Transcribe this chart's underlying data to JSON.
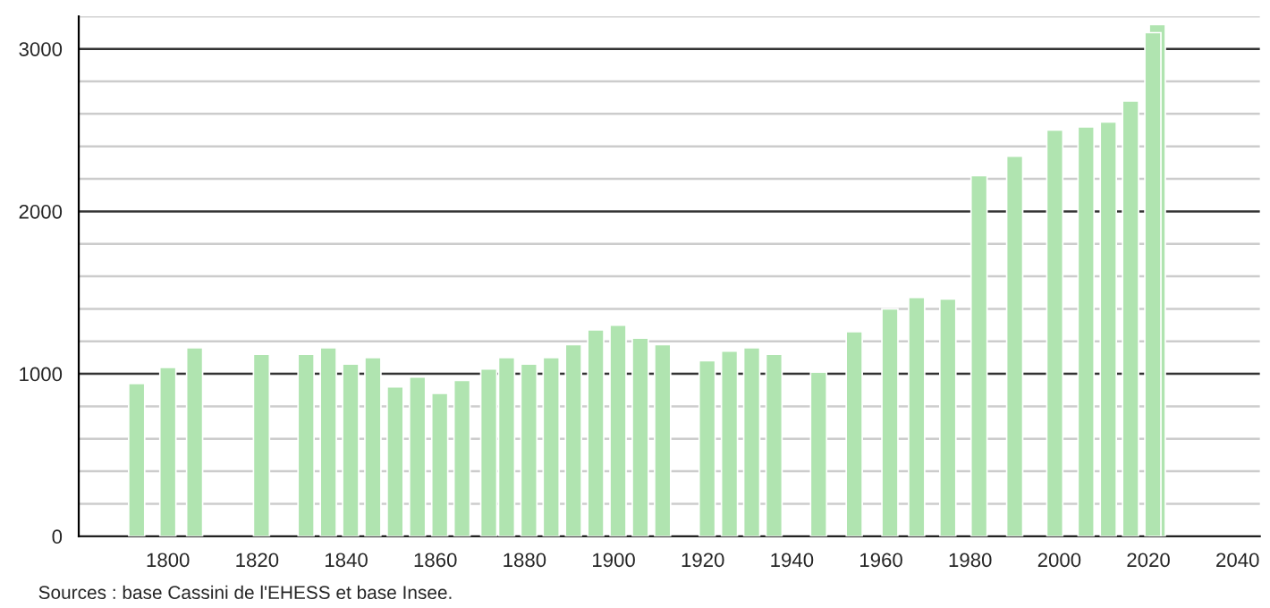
{
  "chart_data": {
    "type": "bar",
    "x": [
      1793,
      1800,
      1806,
      1821,
      1831,
      1836,
      1841,
      1846,
      1851,
      1856,
      1861,
      1866,
      1872,
      1876,
      1881,
      1886,
      1891,
      1896,
      1901,
      1906,
      1911,
      1921,
      1926,
      1931,
      1936,
      1946,
      1954,
      1962,
      1968,
      1975,
      1982,
      1990,
      1999,
      2006,
      2011,
      2016,
      2021,
      2022
    ],
    "values": [
      940,
      1040,
      1160,
      1120,
      1120,
      1160,
      1060,
      1100,
      920,
      980,
      880,
      960,
      1030,
      1100,
      1060,
      1100,
      1180,
      1270,
      1300,
      1220,
      1180,
      1080,
      1140,
      1160,
      1120,
      1010,
      1260,
      1400,
      1470,
      1460,
      2220,
      2340,
      2500,
      2520,
      2550,
      2680,
      3100,
      3150
    ],
    "color": "#b0e4b0",
    "xlim": [
      1780,
      2045
    ],
    "xticks": [
      1800,
      1820,
      1840,
      1860,
      1880,
      1900,
      1920,
      1940,
      1960,
      1980,
      2000,
      2020,
      2040
    ],
    "ylim": [
      0,
      3200
    ],
    "yticks": [
      0,
      {
        "value": 200,
        "label": null
      },
      {
        "value": 400,
        "label": null
      },
      {
        "value": 600,
        "label": null
      },
      {
        "value": 800,
        "label": null
      },
      1000,
      {
        "value": 1200,
        "label": null
      },
      {
        "value": 1400,
        "label": null
      },
      {
        "value": 1600,
        "label": null
      },
      {
        "value": 1800,
        "label": null
      },
      2000,
      {
        "value": 2200,
        "label": null
      },
      {
        "value": 2400,
        "label": null
      },
      {
        "value": 2600,
        "label": null
      },
      {
        "value": 2800,
        "label": null
      },
      3000,
      {
        "value": 3200,
        "label": null
      }
    ],
    "grid": "y",
    "annotations": [
      "Sources : base Cassini de l'EHESS et base Insee."
    ]
  }
}
